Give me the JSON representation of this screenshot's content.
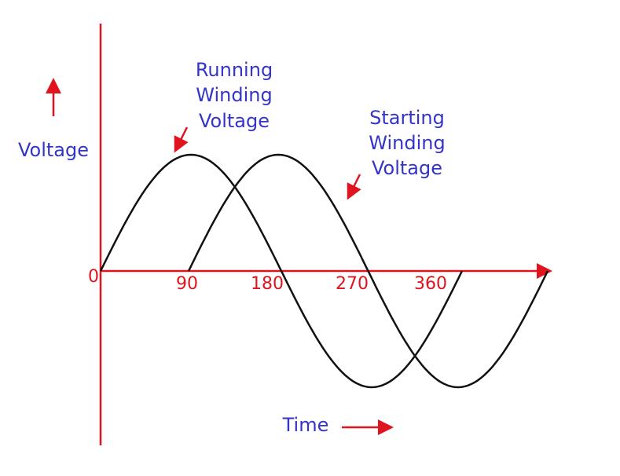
{
  "diagram": {
    "y_axis_label": "Voltage",
    "x_axis_label": "Time",
    "origin": 0,
    "ticks": [
      90,
      180,
      270,
      360
    ],
    "running_label": [
      "Running",
      "Winding",
      "Voltage"
    ],
    "starting_label": [
      "Starting",
      "Winding",
      "Voltage"
    ]
  }
}
